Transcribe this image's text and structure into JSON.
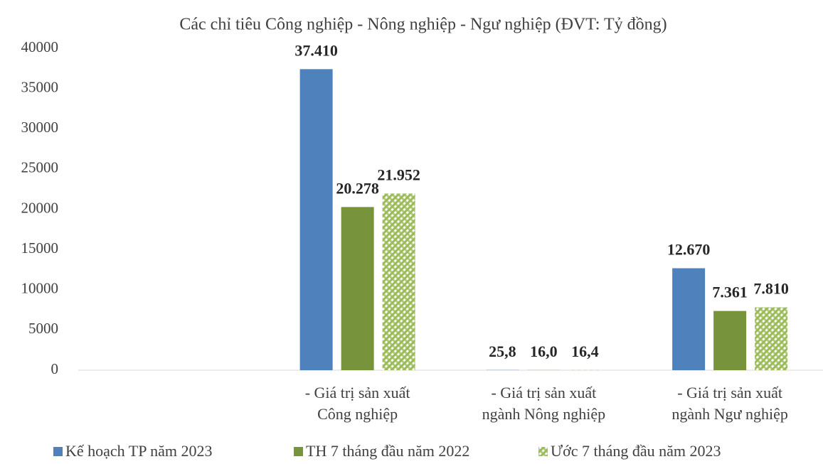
{
  "chart_data": {
    "type": "bar",
    "title": "Các chỉ tiêu Công nghiệp - Nông nghiệp - Ngư nghiệp (ĐVT: Tỷ đồng)",
    "categories": [
      null,
      "- Giá trị sản xuất\nCông nghiệp",
      "- Giá trị sản xuất\nngành Nông nghiệp",
      "- Giá trị sản xuất\nngành Ngư nghiệp"
    ],
    "series": [
      {
        "name": "Kế hoạch TP năm 2023",
        "color": "#4f81bd",
        "values": [
          null,
          37410,
          25.8,
          12670
        ],
        "value_labels": [
          null,
          "37.410",
          "25,8",
          "12.670"
        ]
      },
      {
        "name": "TH 7 tháng đầu năm 2022",
        "color": "#77933c",
        "values": [
          null,
          20278,
          16.0,
          7361
        ],
        "value_labels": [
          null,
          "20.278",
          "16,0",
          "7.361"
        ]
      },
      {
        "name": "Ước 7 tháng đầu năm 2023",
        "color": "#9bbb59",
        "pattern": true,
        "values": [
          null,
          21952,
          16.4,
          7810
        ],
        "value_labels": [
          null,
          "21.952",
          "16,4",
          "7.810"
        ]
      }
    ],
    "ylim": [
      0,
      40000
    ],
    "yticks": [
      0,
      5000,
      10000,
      15000,
      20000,
      25000,
      30000,
      35000,
      40000
    ],
    "legend": "bottom"
  }
}
